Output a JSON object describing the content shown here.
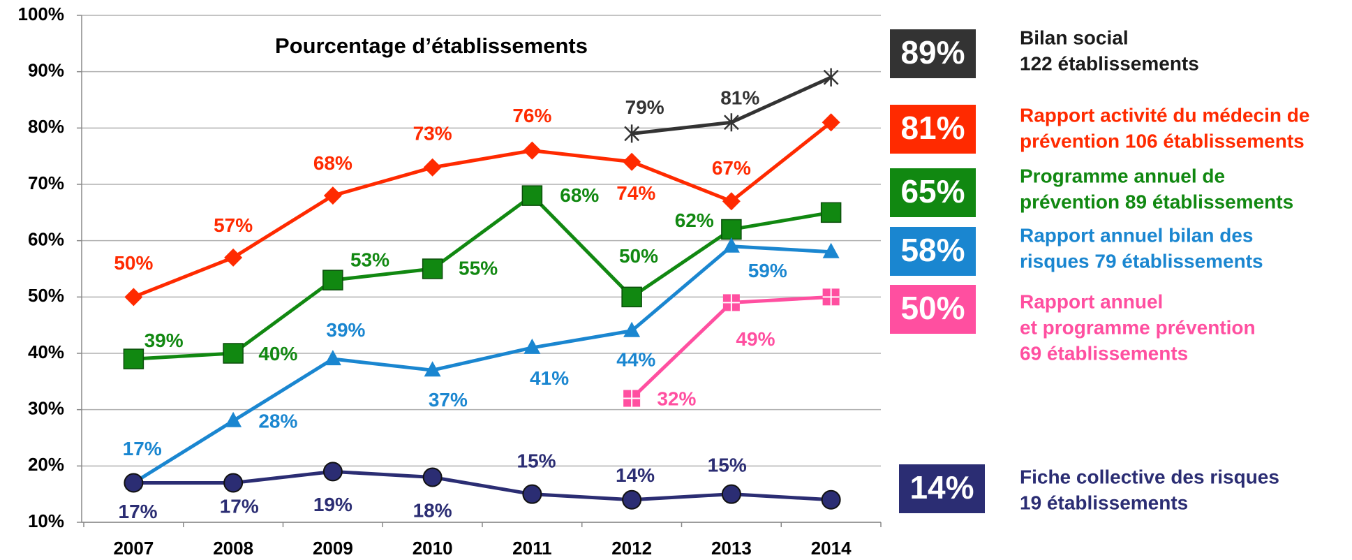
{
  "chart_data": {
    "type": "line",
    "title": "Pourcentage d’établissements",
    "categories": [
      "2007",
      "2008",
      "2009",
      "2010",
      "2011",
      "2012",
      "2013",
      "2014"
    ],
    "ylim": [
      10,
      100
    ],
    "yticks": [
      {
        "value": 10,
        "label": "10%"
      },
      {
        "value": 20,
        "label": "20%"
      },
      {
        "value": 30,
        "label": "30%"
      },
      {
        "value": 40,
        "label": "40%"
      },
      {
        "value": 50,
        "label": "50%"
      },
      {
        "value": 60,
        "label": "60%"
      },
      {
        "value": 70,
        "label": "70%"
      },
      {
        "value": 80,
        "label": "80%"
      },
      {
        "value": 90,
        "label": "90%"
      },
      {
        "value": 100,
        "label": "100%"
      }
    ],
    "grid": true,
    "series": [
      {
        "name": [
          "Bilan social",
          "122 établissements"
        ],
        "color": "#333333",
        "marker": "star",
        "badge": "89%",
        "values": [
          null,
          null,
          null,
          null,
          null,
          79,
          81,
          89
        ],
        "value_labels": [
          null,
          null,
          null,
          null,
          null,
          "79%",
          "81%",
          null
        ]
      },
      {
        "name": [
          "Rapport activité du médecin de",
          "prévention 106 établissements"
        ],
        "color": "#ff2a00",
        "marker": "diamond",
        "badge": "81%",
        "values": [
          50,
          57,
          68,
          73,
          76,
          74,
          67,
          81
        ],
        "value_labels": [
          "50%",
          "57%",
          "68%",
          "73%",
          "76%",
          "74%",
          "67%",
          null
        ]
      },
      {
        "name": [
          "Programme annuel de",
          "prévention 89 établissements"
        ],
        "color": "#118811",
        "marker": "square",
        "badge": "65%",
        "values": [
          39,
          40,
          53,
          55,
          68,
          50,
          62,
          65
        ],
        "value_labels": [
          "39%",
          "40%",
          "53%",
          "55%",
          "68%",
          "50%",
          "62%",
          null
        ]
      },
      {
        "name": [
          "Rapport annuel bilan des",
          "risques 79 établissements"
        ],
        "color": "#1a86d0",
        "marker": "triangle",
        "badge": "58%",
        "values": [
          17,
          28,
          39,
          37,
          41,
          44,
          59,
          58
        ],
        "value_labels": [
          "17%",
          "28%",
          "39%",
          "37%",
          "41%",
          "44%",
          "59%",
          null
        ]
      },
      {
        "name": [
          "Rapport annuel",
          "et programme prévention",
          "69 établissements"
        ],
        "color": "#ff4fa0",
        "marker": "crosssquare",
        "badge": "50%",
        "values": [
          null,
          null,
          null,
          null,
          null,
          32,
          49,
          50
        ],
        "value_labels": [
          null,
          null,
          null,
          null,
          null,
          "32%",
          "49%",
          null
        ]
      },
      {
        "name": [
          "Fiche collective des risques",
          "19 établissements"
        ],
        "color": "#2b2d73",
        "marker": "circle",
        "badge": "14%",
        "values": [
          17,
          17,
          19,
          18,
          15,
          14,
          15,
          14
        ],
        "value_labels": [
          "17%",
          "17%",
          "19%",
          "18%",
          "15%",
          "14%",
          "15%",
          null
        ]
      }
    ]
  }
}
